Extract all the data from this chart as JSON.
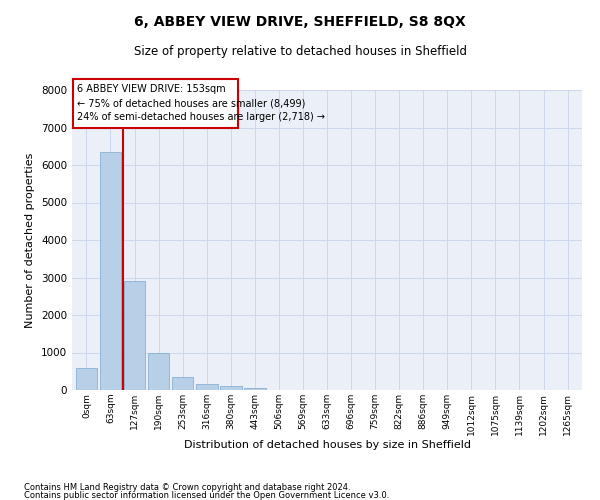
{
  "title": "6, ABBEY VIEW DRIVE, SHEFFIELD, S8 8QX",
  "subtitle": "Size of property relative to detached houses in Sheffield",
  "xlabel": "Distribution of detached houses by size in Sheffield",
  "ylabel": "Number of detached properties",
  "bar_labels": [
    "0sqm",
    "63sqm",
    "127sqm",
    "190sqm",
    "253sqm",
    "316sqm",
    "380sqm",
    "443sqm",
    "506sqm",
    "569sqm",
    "633sqm",
    "696sqm",
    "759sqm",
    "822sqm",
    "886sqm",
    "949sqm",
    "1012sqm",
    "1075sqm",
    "1139sqm",
    "1202sqm",
    "1265sqm"
  ],
  "bar_values": [
    580,
    6350,
    2920,
    980,
    360,
    155,
    95,
    60,
    0,
    0,
    0,
    0,
    0,
    0,
    0,
    0,
    0,
    0,
    0,
    0,
    0
  ],
  "bar_color": "#b8cfe8",
  "bar_edge_color": "#7aa8cc",
  "annotation_title": "6 ABBEY VIEW DRIVE: 153sqm",
  "annotation_line1": "← 75% of detached houses are smaller (8,499)",
  "annotation_line2": "24% of semi-detached houses are larger (2,718) →",
  "annotation_box_color": "#cc0000",
  "ylim": [
    0,
    8000
  ],
  "yticks": [
    0,
    1000,
    2000,
    3000,
    4000,
    5000,
    6000,
    7000,
    8000
  ],
  "grid_color": "#cdd8ea",
  "bg_color": "#eaeff8",
  "footer_line1": "Contains HM Land Registry data © Crown copyright and database right 2024.",
  "footer_line2": "Contains public sector information licensed under the Open Government Licence v3.0."
}
